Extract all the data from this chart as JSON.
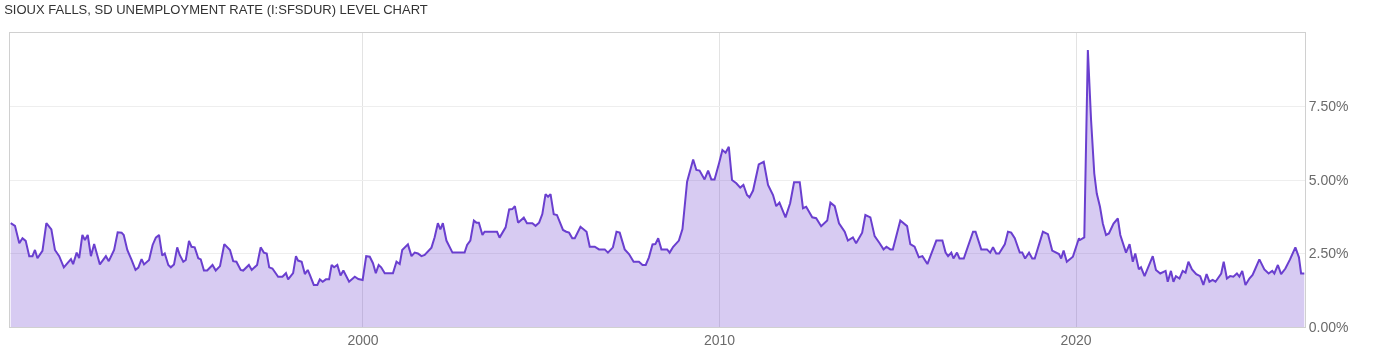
{
  "chart_data": {
    "type": "area",
    "title": "SIOUX FALLS, SD UNEMPLOYMENT RATE (I:SFSDUR) LEVEL CHART",
    "xlim": [
      1990.1,
      2026.42
    ],
    "xticks": [
      2000,
      2010,
      2020
    ],
    "ylim": [
      0,
      10
    ],
    "yticks": [
      {
        "value": 0,
        "label": "0.00%"
      },
      {
        "value": 2.5,
        "label": "2.50%"
      },
      {
        "value": 5,
        "label": "5.00%"
      },
      {
        "value": 7.5,
        "label": "7.50%"
      }
    ],
    "grid": true,
    "series": [
      {
        "color": "#6a3fcf",
        "x": [
          1990.12,
          1990.24,
          1990.36,
          1990.45,
          1990.54,
          1990.64,
          1990.73,
          1990.8,
          1990.87,
          1991.01,
          1991.12,
          1991.26,
          1991.36,
          1991.48,
          1991.61,
          1991.73,
          1991.81,
          1991.87,
          1991.97,
          1992.04,
          1992.13,
          1992.2,
          1992.28,
          1992.37,
          1992.46,
          1992.56,
          1992.62,
          1992.79,
          1992.87,
          1993.02,
          1993.12,
          1993.23,
          1993.29,
          1993.39,
          1993.51,
          1993.62,
          1993.7,
          1993.79,
          1993.86,
          1994.0,
          1994.1,
          1994.19,
          1994.28,
          1994.37,
          1994.44,
          1994.54,
          1994.61,
          1994.7,
          1994.79,
          1994.86,
          1994.96,
          1995.03,
          1995.12,
          1995.19,
          1995.28,
          1995.38,
          1995.45,
          1995.54,
          1995.63,
          1995.78,
          1995.87,
          1995.99,
          1996.11,
          1996.27,
          1996.36,
          1996.45,
          1996.57,
          1996.64,
          1996.8,
          1996.88,
          1997.03,
          1997.13,
          1997.22,
          1997.3,
          1997.37,
          1997.46,
          1997.62,
          1997.74,
          1997.84,
          1997.9,
          1998.04,
          1998.12,
          1998.18,
          1998.28,
          1998.37,
          1998.45,
          1998.51,
          1998.62,
          1998.72,
          1998.79,
          1998.87,
          1998.96,
          1999.05,
          1999.12,
          1999.19,
          1999.28,
          1999.37,
          1999.45,
          1999.61,
          1999.77,
          1999.87,
          1999.99,
          2000.09,
          2000.19,
          2000.28,
          2000.36,
          2000.44,
          2000.51,
          2000.61,
          2000.84,
          2000.94,
          2001.03,
          2001.1,
          2001.26,
          2001.36,
          2001.45,
          2001.54,
          2001.64,
          2001.73,
          2001.92,
          2002.01,
          2002.1,
          2002.17,
          2002.24,
          2002.34,
          2002.51,
          2002.85,
          2002.92,
          2003.01,
          2003.11,
          2003.18,
          2003.25,
          2003.35,
          2003.41,
          2003.76,
          2003.83,
          2004.0,
          2004.1,
          2004.19,
          2004.26,
          2004.35,
          2004.51,
          2004.6,
          2004.75,
          2004.84,
          2004.94,
          2005.03,
          2005.12,
          2005.19,
          2005.26,
          2005.35,
          2005.44,
          2005.61,
          2005.7,
          2005.78,
          2005.87,
          2005.94,
          2006.1,
          2006.27,
          2006.36,
          2006.5,
          2006.62,
          2006.78,
          2006.87,
          2007.01,
          2007.11,
          2007.2,
          2007.34,
          2007.46,
          2007.59,
          2007.74,
          2007.84,
          2007.93,
          2008.02,
          2008.12,
          2008.2,
          2008.28,
          2008.37,
          2008.53,
          2008.6,
          2008.7,
          2008.86,
          2008.96,
          2009.09,
          2009.26,
          2009.35,
          2009.44,
          2009.58,
          2009.68,
          2009.77,
          2009.86,
          2009.99,
          2010.08,
          2010.17,
          2010.26,
          2010.35,
          2010.47,
          2010.58,
          2010.67,
          2010.77,
          2010.84,
          2010.94,
          2011.1,
          2011.24,
          2011.36,
          2011.5,
          2011.59,
          2011.68,
          2011.85,
          2011.98,
          2012.09,
          2012.25,
          2012.34,
          2012.43,
          2012.6,
          2012.71,
          2012.85,
          2013.02,
          2013.11,
          2013.23,
          2013.35,
          2013.51,
          2013.6,
          2013.74,
          2013.83,
          2014.0,
          2014.09,
          2014.23,
          2014.35,
          2014.49,
          2014.6,
          2014.68,
          2014.79,
          2014.86,
          2015.07,
          2015.26,
          2015.35,
          2015.47,
          2015.59,
          2015.69,
          2015.83,
          2016.08,
          2016.25,
          2016.34,
          2016.41,
          2016.5,
          2016.56,
          2016.66,
          2016.73,
          2016.85,
          2017.11,
          2017.18,
          2017.34,
          2017.5,
          2017.59,
          2017.67,
          2017.76,
          2017.84,
          2018.0,
          2018.09,
          2018.18,
          2018.28,
          2018.42,
          2018.49,
          2018.57,
          2018.68,
          2018.77,
          2018.84,
          2019.07,
          2019.21,
          2019.33,
          2019.52,
          2019.58,
          2019.65,
          2019.74,
          2019.91,
          2020.08,
          2020.11,
          2020.23,
          2020.33,
          2020.42,
          2020.51,
          2020.58,
          2020.67,
          2020.75,
          2020.84,
          2020.92,
          2021.05,
          2021.17,
          2021.24,
          2021.4,
          2021.5,
          2021.59,
          2021.66,
          2021.76,
          2021.82,
          2021.92,
          2022.15,
          2022.24,
          2022.36,
          2022.51,
          2022.57,
          2022.66,
          2022.73,
          2022.8,
          2022.9,
          2022.99,
          2023.07,
          2023.15,
          2023.25,
          2023.37,
          2023.48,
          2023.57,
          2023.66,
          2023.74,
          2023.83,
          2023.91,
          2024.07,
          2024.14,
          2024.23,
          2024.32,
          2024.41,
          2024.51,
          2024.58,
          2024.66,
          2024.75,
          2024.86,
          2024.95,
          2025.03,
          2025.14,
          2025.28,
          2025.4,
          2025.5,
          2025.56,
          2025.66,
          2025.75,
          2025.87,
          2026.0,
          2026.15,
          2026.25,
          2026.31,
          2026.4
        ],
        "values": [
          3.53,
          3.44,
          2.85,
          3.02,
          2.93,
          2.41,
          2.41,
          2.62,
          2.34,
          2.59,
          3.53,
          3.32,
          2.62,
          2.41,
          2.03,
          2.2,
          2.31,
          2.14,
          2.53,
          2.34,
          3.13,
          2.96,
          3.13,
          2.41,
          2.82,
          2.39,
          2.13,
          2.41,
          2.24,
          2.62,
          3.22,
          3.21,
          3.13,
          2.62,
          2.28,
          1.94,
          2.02,
          2.31,
          2.13,
          2.28,
          2.79,
          3.04,
          3.13,
          2.43,
          2.5,
          2.11,
          2.03,
          2.13,
          2.71,
          2.45,
          2.22,
          2.28,
          2.93,
          2.73,
          2.71,
          2.34,
          2.3,
          1.92,
          1.92,
          2.11,
          1.92,
          2.07,
          2.82,
          2.62,
          2.24,
          2.22,
          1.94,
          1.92,
          2.11,
          1.94,
          2.11,
          2.71,
          2.53,
          2.5,
          2.03,
          1.99,
          1.71,
          1.71,
          1.83,
          1.62,
          1.83,
          2.41,
          2.26,
          2.22,
          1.8,
          1.94,
          1.77,
          1.43,
          1.43,
          1.62,
          1.54,
          1.62,
          1.62,
          2.11,
          2.03,
          2.11,
          1.75,
          1.92,
          1.54,
          1.71,
          1.63,
          1.6,
          2.41,
          2.39,
          2.17,
          1.83,
          2.11,
          2.03,
          1.83,
          1.83,
          2.22,
          2.14,
          2.62,
          2.81,
          2.41,
          2.53,
          2.5,
          2.41,
          2.45,
          2.7,
          3.05,
          3.53,
          3.32,
          3.53,
          2.94,
          2.53,
          2.53,
          2.79,
          2.94,
          3.62,
          3.55,
          3.55,
          3.13,
          3.24,
          3.24,
          3.04,
          3.39,
          4.0,
          4.01,
          4.11,
          3.55,
          3.72,
          3.53,
          3.53,
          3.44,
          3.55,
          3.84,
          4.52,
          4.43,
          4.52,
          3.84,
          3.81,
          3.3,
          3.24,
          3.21,
          3.02,
          3.02,
          3.41,
          3.24,
          2.73,
          2.73,
          2.64,
          2.64,
          2.53,
          2.71,
          3.24,
          3.21,
          2.64,
          2.48,
          2.22,
          2.22,
          2.11,
          2.11,
          2.37,
          2.81,
          2.82,
          3.02,
          2.64,
          2.64,
          2.53,
          2.73,
          2.94,
          3.33,
          4.94,
          5.7,
          5.34,
          5.32,
          5.02,
          5.32,
          5.02,
          5.02,
          5.59,
          6.02,
          5.93,
          6.13,
          5.0,
          4.89,
          4.74,
          4.83,
          4.49,
          4.41,
          4.64,
          5.53,
          5.62,
          4.83,
          4.49,
          4.11,
          4.23,
          3.73,
          4.21,
          4.92,
          4.92,
          4.04,
          4.09,
          3.73,
          3.7,
          3.43,
          3.62,
          4.23,
          4.11,
          3.53,
          3.24,
          2.94,
          3.05,
          2.85,
          3.21,
          3.81,
          3.73,
          3.09,
          2.85,
          2.64,
          2.73,
          2.64,
          2.64,
          3.62,
          3.43,
          2.82,
          2.73,
          2.37,
          2.41,
          2.14,
          2.94,
          2.94,
          2.53,
          2.41,
          2.53,
          2.33,
          2.53,
          2.33,
          2.33,
          3.24,
          3.24,
          2.64,
          2.64,
          2.53,
          2.71,
          2.5,
          2.5,
          2.81,
          3.24,
          3.21,
          3.02,
          2.53,
          2.53,
          2.33,
          2.53,
          2.33,
          2.33,
          3.24,
          3.16,
          2.6,
          2.48,
          2.33,
          2.6,
          2.22,
          2.39,
          3.02,
          2.96,
          3.05,
          9.42,
          7.04,
          5.22,
          4.54,
          4.09,
          3.52,
          3.13,
          3.18,
          3.52,
          3.69,
          3.13,
          2.53,
          2.82,
          2.22,
          2.5,
          1.96,
          2.03,
          1.73,
          2.41,
          1.94,
          1.82,
          1.91,
          1.54,
          1.91,
          1.54,
          1.73,
          1.65,
          1.91,
          1.85,
          2.22,
          1.96,
          1.8,
          1.73,
          1.43,
          1.8,
          1.54,
          1.6,
          1.54,
          1.82,
          2.22,
          1.65,
          1.73,
          1.71,
          1.82,
          1.71,
          1.91,
          1.43,
          1.65,
          1.77,
          1.99,
          2.3,
          1.96,
          1.82,
          1.91,
          1.82,
          2.11,
          1.8,
          1.99,
          2.3,
          2.71,
          2.37,
          1.82,
          1.82
        ]
      }
    ]
  }
}
